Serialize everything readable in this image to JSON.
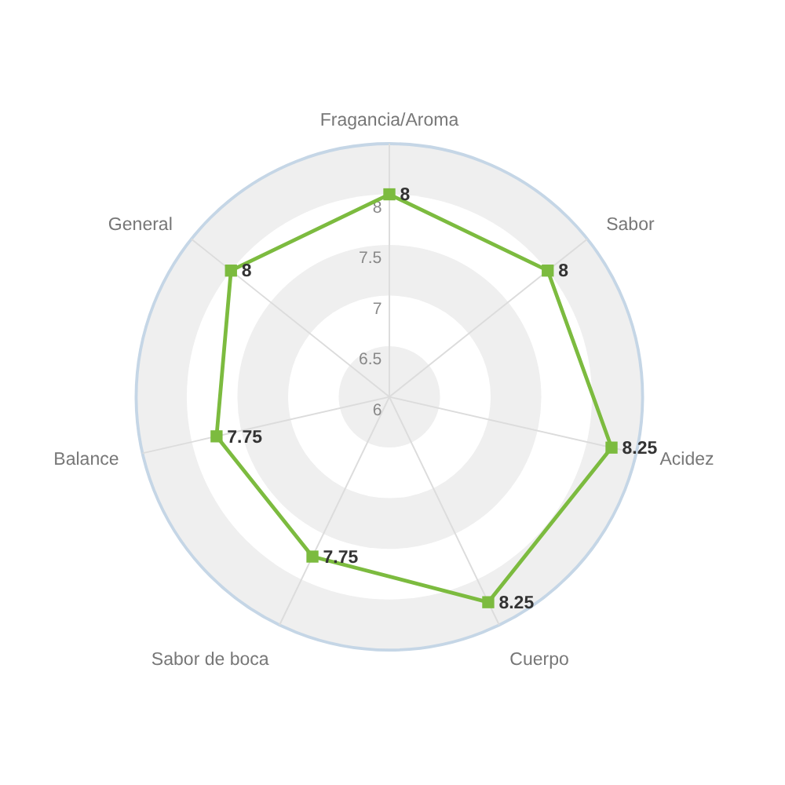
{
  "chart_data": {
    "type": "radar",
    "categories": [
      "Fragancia/Aroma",
      "Sabor",
      "Acidez",
      "Cuerpo",
      "Sabor de boca",
      "Balance",
      "General"
    ],
    "series": [
      {
        "color": "#7cbb3f",
        "values": [
          8,
          8,
          8.25,
          8.25,
          7.75,
          7.75,
          8
        ]
      }
    ],
    "ylim": [
      6,
      8.5
    ],
    "yticks": [
      6,
      6.5,
      7,
      7.5,
      8
    ],
    "marker": "square",
    "data_labels": true,
    "grid": true
  }
}
